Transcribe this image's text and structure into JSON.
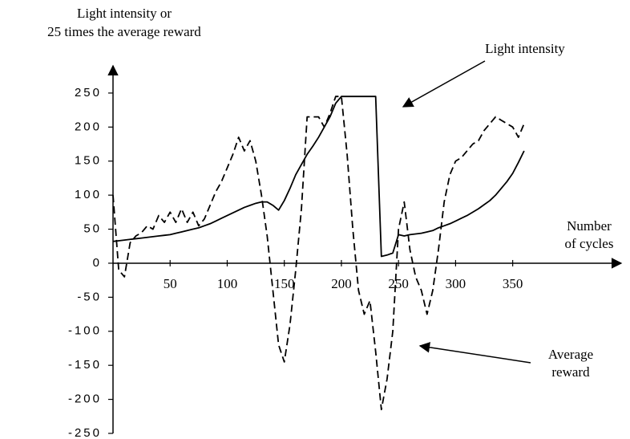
{
  "chart_data": {
    "type": "line",
    "y_label": [
      "Light intensity or",
      "25 times the average reward"
    ],
    "x_label": [
      "Number",
      "of cycles"
    ],
    "annotations": {
      "light": "Light intensity",
      "reward": [
        "Average",
        "reward"
      ]
    },
    "x": [
      0,
      5,
      10,
      15,
      20,
      25,
      30,
      35,
      40,
      45,
      50,
      55,
      60,
      65,
      70,
      75,
      80,
      85,
      90,
      95,
      100,
      105,
      110,
      115,
      120,
      125,
      130,
      135,
      140,
      145,
      150,
      155,
      160,
      165,
      170,
      175,
      180,
      185,
      190,
      195,
      200,
      205,
      210,
      215,
      220,
      225,
      230,
      235,
      240,
      245,
      250,
      255,
      260,
      265,
      270,
      275,
      280,
      285,
      290,
      295,
      300,
      305,
      310,
      315,
      320,
      325,
      330,
      335,
      340,
      345,
      350,
      355,
      360
    ],
    "series": [
      {
        "name": "Light intensity",
        "color": "#000000",
        "dashed": false,
        "values": [
          32,
          33,
          34,
          35,
          36,
          37,
          38,
          39,
          40,
          41,
          42,
          44,
          46,
          48,
          50,
          52,
          55,
          58,
          62,
          66,
          70,
          74,
          78,
          82,
          85,
          88,
          90,
          90,
          85,
          78,
          92,
          110,
          130,
          145,
          160,
          172,
          185,
          200,
          215,
          235,
          245,
          245,
          245,
          245,
          245,
          245,
          245,
          10,
          12,
          15,
          42,
          40,
          42,
          43,
          44,
          46,
          48,
          52,
          55,
          58,
          62,
          66,
          70,
          75,
          80,
          86,
          92,
          100,
          110,
          120,
          132,
          148,
          165
        ]
      },
      {
        "name": "Average reward",
        "color": "#000000",
        "dashed": true,
        "values": [
          100,
          -10,
          -20,
          30,
          40,
          45,
          55,
          50,
          70,
          60,
          75,
          60,
          80,
          60,
          75,
          55,
          65,
          85,
          105,
          120,
          140,
          160,
          185,
          165,
          180,
          150,
          100,
          40,
          -40,
          -120,
          -145,
          -90,
          -10,
          80,
          215,
          215,
          215,
          200,
          220,
          245,
          245,
          160,
          50,
          -40,
          -75,
          -55,
          -130,
          -215,
          -170,
          -100,
          50,
          90,
          20,
          -20,
          -40,
          -75,
          -40,
          20,
          90,
          130,
          150,
          155,
          165,
          175,
          180,
          195,
          205,
          215,
          210,
          205,
          200,
          185,
          205
        ]
      }
    ],
    "xlim": [
      0,
      445
    ],
    "ylim": [
      -250,
      290
    ],
    "xticks": [
      50,
      100,
      150,
      200,
      250,
      300,
      350
    ],
    "yticks": [
      250,
      200,
      150,
      100,
      50,
      0,
      -50,
      -100,
      -150,
      -200,
      -250
    ],
    "grid": false
  }
}
